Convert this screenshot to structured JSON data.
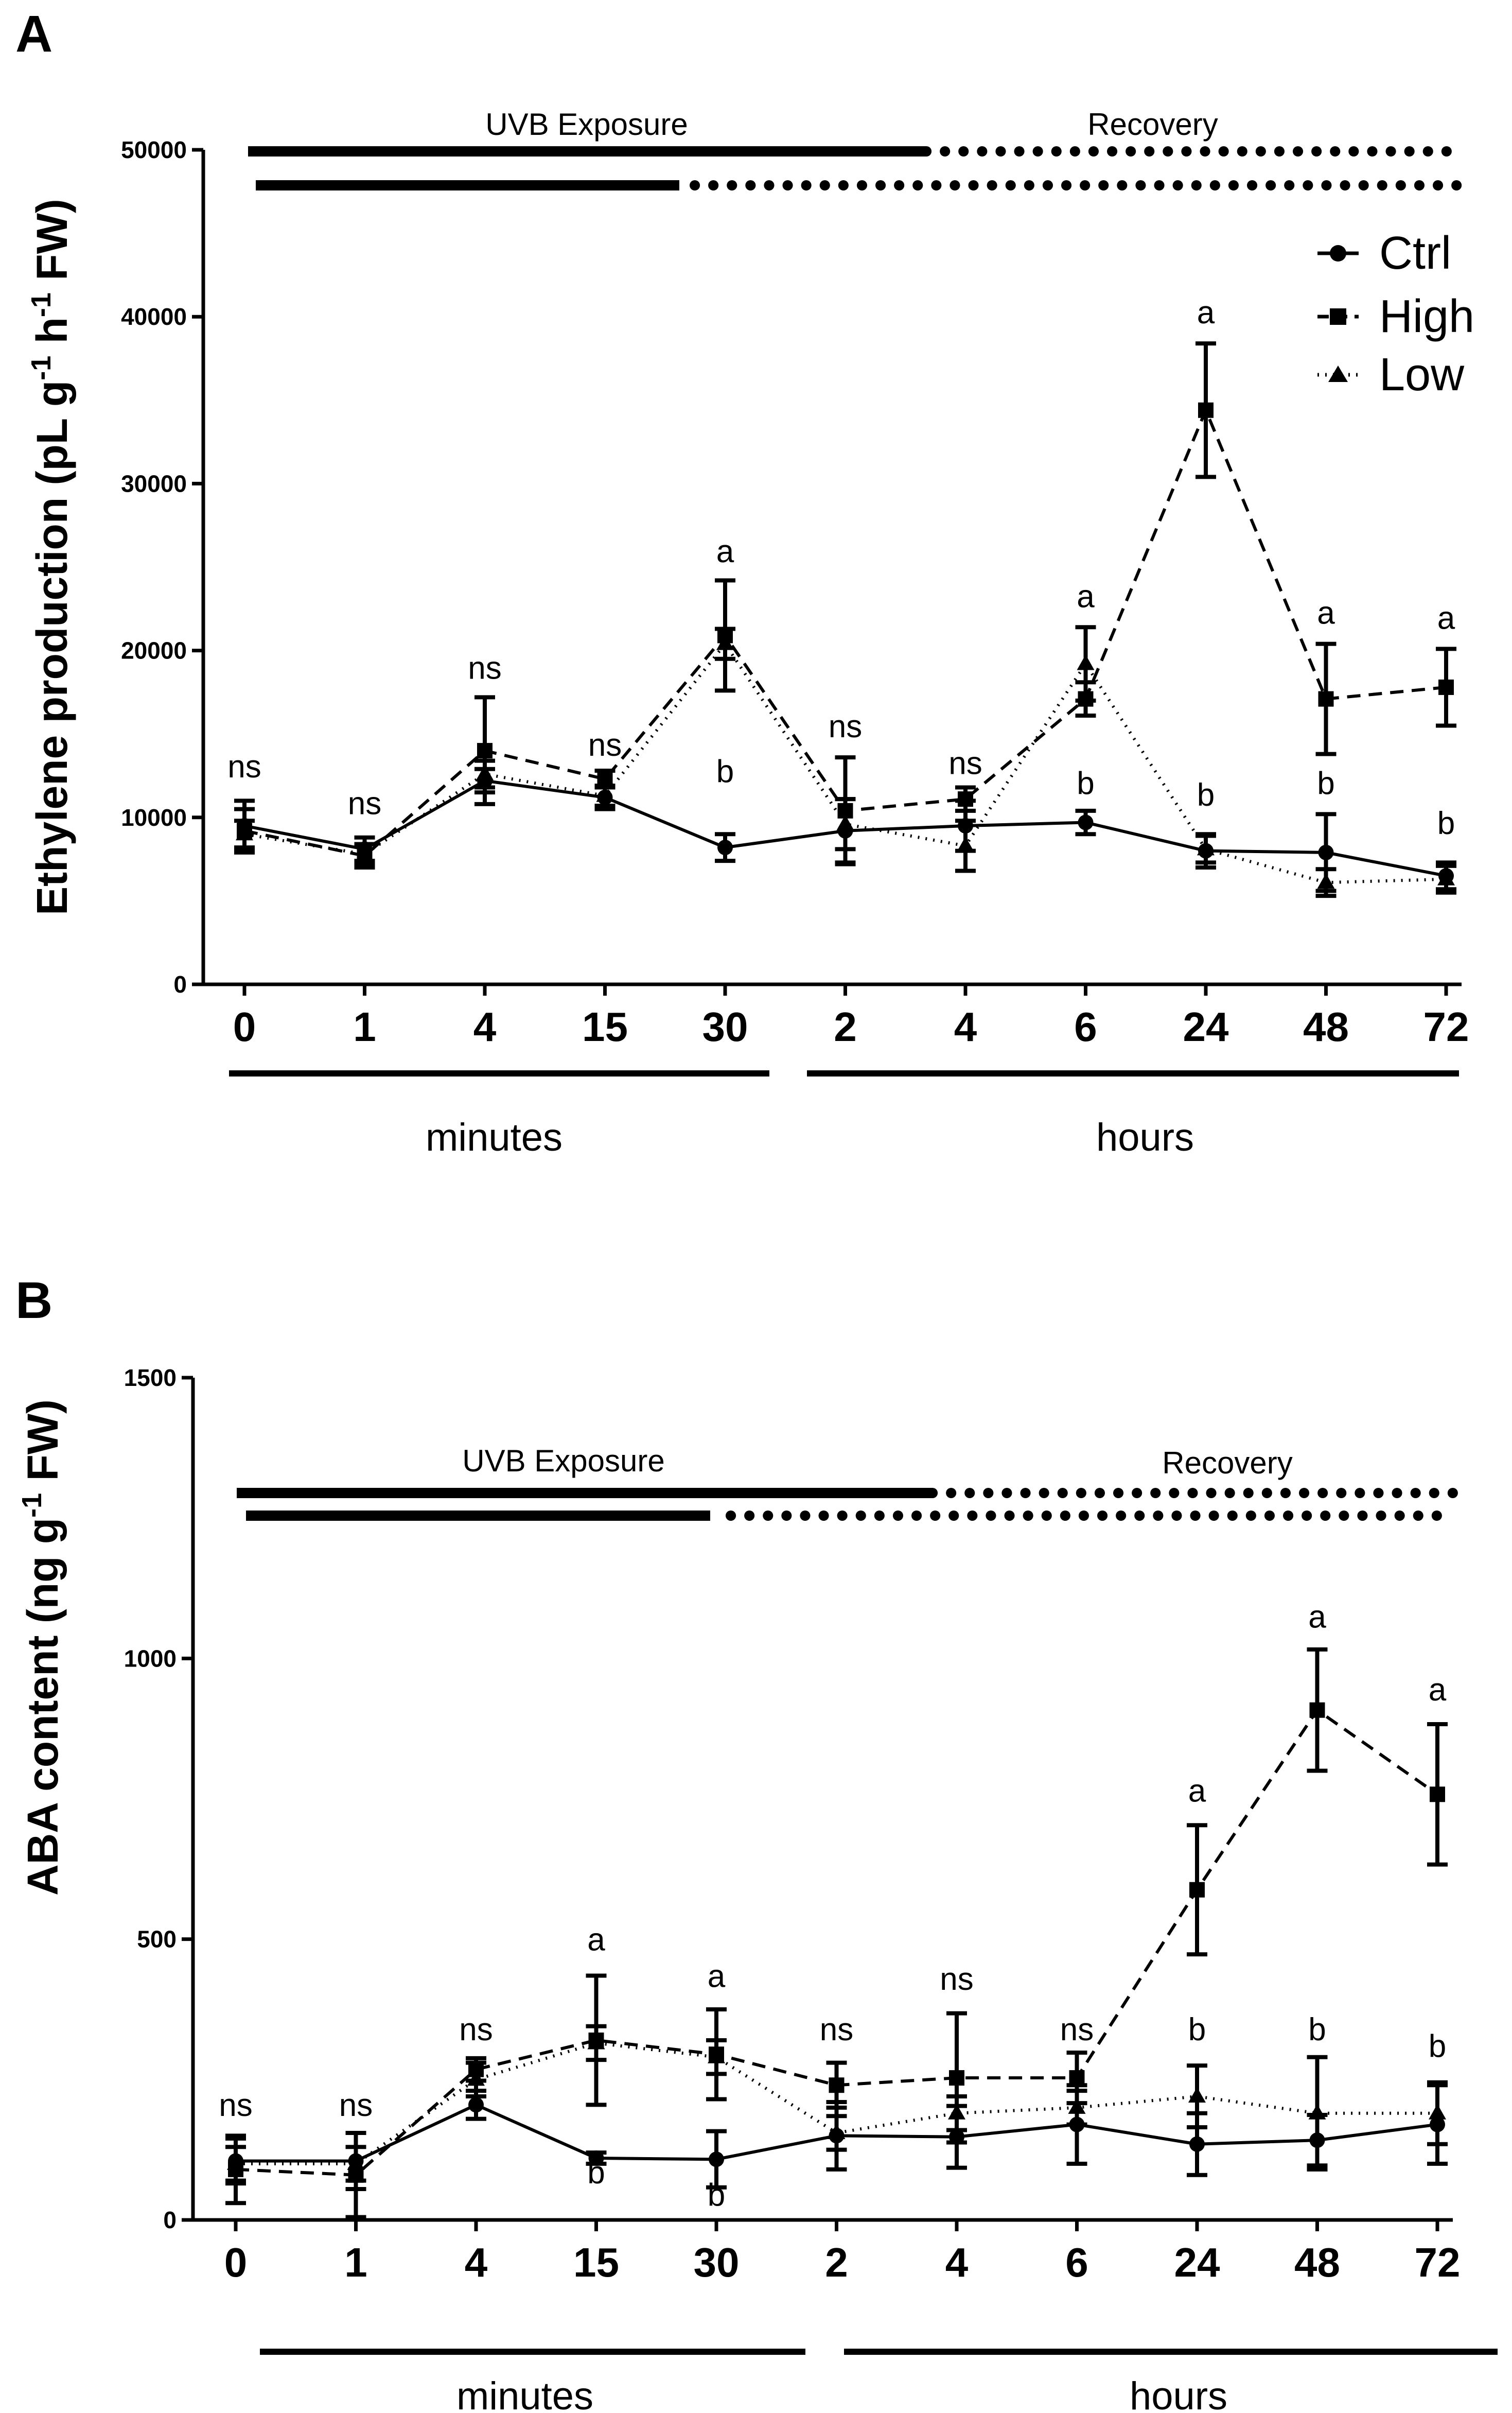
{
  "panels": [
    {
      "letter": "A",
      "ylabel": "Ethylene production (pL g",
      "ylabel_sup1": "-1",
      "ylabel_mid": " h",
      "ylabel_sup2": "-1",
      "ylabel_end": " FW)",
      "exposure_label": "UVB Exposure",
      "recovery_label": "Recovery",
      "group_minutes": "minutes",
      "group_hours": "hours",
      "legend": [
        "Ctrl",
        "High",
        "Low"
      ]
    },
    {
      "letter": "B",
      "ylabel": "ABA content (ng g",
      "ylabel_sup1": "-1",
      "ylabel_end": " FW)",
      "exposure_label": "UVB Exposure",
      "recovery_label": "Recovery",
      "group_minutes": "minutes",
      "group_hours": "hours"
    }
  ],
  "chart_data": [
    {
      "type": "line",
      "categories": [
        "0",
        "1",
        "4",
        "15",
        "30",
        "2",
        "4",
        "6",
        "24",
        "48",
        "72"
      ],
      "ylim": [
        0,
        50000
      ],
      "yticks": [
        0,
        10000,
        20000,
        30000,
        40000,
        50000
      ],
      "grid": false,
      "legend_position": "top-right",
      "series": [
        {
          "name": "Ctrl",
          "marker": "circle",
          "dash": "solid",
          "values": [
            9500,
            8100,
            12200,
            11200,
            8200,
            9200,
            9500,
            9700,
            8000,
            7900,
            6500
          ],
          "err": [
            1500,
            700,
            700,
            700,
            800,
            1900,
            1500,
            700,
            1000,
            2300,
            800
          ]
        },
        {
          "name": "High",
          "marker": "square",
          "dash": "dashed",
          "values": [
            9200,
            7700,
            14000,
            12300,
            20900,
            10400,
            11100,
            17100,
            34400,
            17100,
            17800
          ],
          "err": [
            1300,
            700,
            3200,
            500,
            3300,
            3200,
            700,
            1000,
            4000,
            3300,
            2300
          ]
        },
        {
          "name": "Low",
          "marker": "triangle",
          "dash": "dotted",
          "values": [
            9000,
            7800,
            12600,
            11300,
            20400,
            9600,
            8300,
            19200,
            8100,
            6100,
            6300
          ],
          "err": [
            800,
            600,
            800,
            600,
            900,
            1500,
            1500,
            2200,
            800,
            800,
            800
          ]
        }
      ],
      "significance": [
        {
          "index": 0,
          "label": "ns",
          "value": 12400
        },
        {
          "index": 1,
          "label": "ns",
          "value": 10200
        },
        {
          "index": 2,
          "label": "ns",
          "value": 18300
        },
        {
          "index": 3,
          "label": "ns",
          "value": 13700
        },
        {
          "index": 4,
          "label": "a",
          "value": 25300
        },
        {
          "index": 4,
          "label": "b",
          "value": 12100
        },
        {
          "index": 5,
          "label": "ns",
          "value": 14800
        },
        {
          "index": 6,
          "label": "ns",
          "value": 12600
        },
        {
          "index": 7,
          "label": "a",
          "value": 22600
        },
        {
          "index": 7,
          "label": "b",
          "value": 11400
        },
        {
          "index": 8,
          "label": "a",
          "value": 39600
        },
        {
          "index": 8,
          "label": "b",
          "value": 10700
        },
        {
          "index": 9,
          "label": "a",
          "value": 21600
        },
        {
          "index": 9,
          "label": "b",
          "value": 11400
        },
        {
          "index": 10,
          "label": "a",
          "value": 21300
        },
        {
          "index": 10,
          "label": "b",
          "value": 9000
        }
      ]
    },
    {
      "type": "line",
      "categories": [
        "0",
        "1",
        "4",
        "15",
        "30",
        "2",
        "4",
        "6",
        "24",
        "48",
        "72"
      ],
      "ylim": [
        0,
        1500
      ],
      "yticks": [
        0,
        500,
        1000,
        1500
      ],
      "grid": false,
      "series": [
        {
          "name": "Ctrl",
          "marker": "circle",
          "dash": "solid",
          "values": [
            105,
            105,
            205,
            110,
            108,
            150,
            148,
            170,
            135,
            142,
            170
          ],
          "err": [
            40,
            50,
            25,
            10,
            50,
            60,
            55,
            70,
            55,
            45,
            70
          ]
        },
        {
          "name": "High",
          "marker": "square",
          "dash": "dashed",
          "values": [
            90,
            80,
            268,
            320,
            295,
            240,
            253,
            253,
            588,
            908,
            758
          ],
          "err": [
            60,
            75,
            20,
            115,
            80,
            40,
            115,
            45,
            115,
            108,
            125
          ]
        },
        {
          "name": "Low",
          "marker": "triangle",
          "dash": "dotted",
          "values": [
            100,
            100,
            250,
            315,
            290,
            155,
            190,
            200,
            220,
            190,
            190
          ],
          "err": [
            30,
            30,
            30,
            30,
            30,
            30,
            30,
            30,
            55,
            100,
            55
          ]
        }
      ],
      "significance": [
        {
          "index": 0,
          "label": "ns",
          "value": 185
        },
        {
          "index": 1,
          "label": "ns",
          "value": 185
        },
        {
          "index": 2,
          "label": "ns",
          "value": 320
        },
        {
          "index": 3,
          "label": "a",
          "value": 480
        },
        {
          "index": 3,
          "label": "b",
          "value": 65
        },
        {
          "index": 4,
          "label": "a",
          "value": 415
        },
        {
          "index": 4,
          "label": "b",
          "value": 25
        },
        {
          "index": 5,
          "label": "ns",
          "value": 320
        },
        {
          "index": 6,
          "label": "ns",
          "value": 410
        },
        {
          "index": 7,
          "label": "ns",
          "value": 320
        },
        {
          "index": 8,
          "label": "a",
          "value": 745
        },
        {
          "index": 8,
          "label": "b",
          "value": 320
        },
        {
          "index": 9,
          "label": "a",
          "value": 1055
        },
        {
          "index": 9,
          "label": "b",
          "value": 320
        },
        {
          "index": 10,
          "label": "a",
          "value": 925
        },
        {
          "index": 10,
          "label": "b",
          "value": 290
        }
      ]
    }
  ]
}
